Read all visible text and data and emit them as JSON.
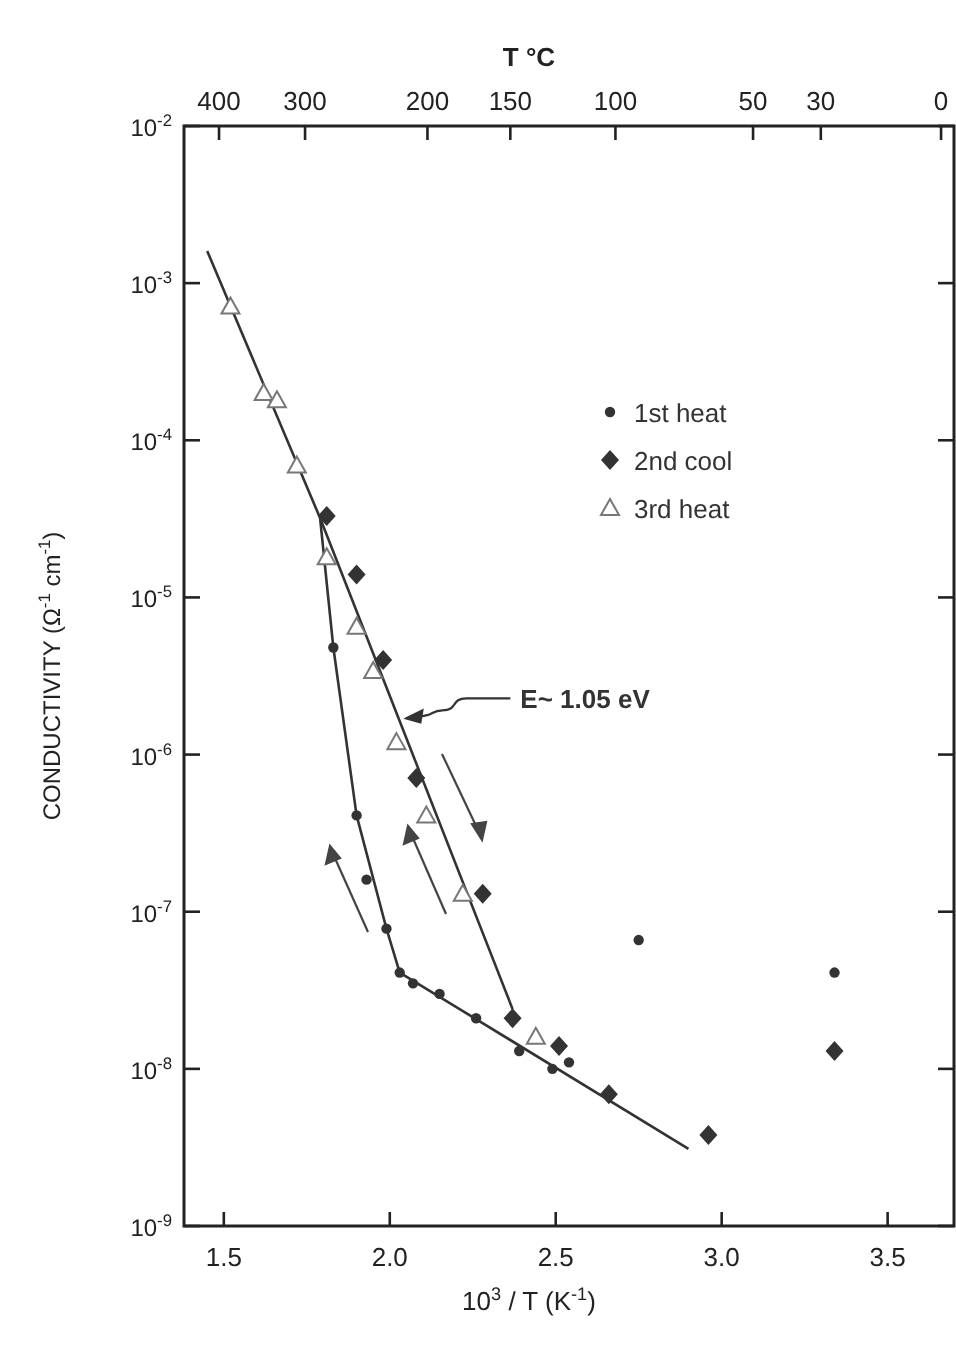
{
  "chart_data": {
    "type": "scatter",
    "xlabel": "10$^{3}$ / T   (K$^{-1}$)",
    "ylabel": "CONDUCTIVITY   (Ω$^{-1}$ cm$^{-1}$)",
    "x2label": "T °C",
    "log": "y",
    "xlim": [
      1.38,
      3.7
    ],
    "ylim": [
      1e-09,
      0.01
    ],
    "xticks": [
      {
        "value": 1.5,
        "label": "1.5"
      },
      {
        "value": 2.0,
        "label": "2.0"
      },
      {
        "value": 2.5,
        "label": "2.5"
      },
      {
        "value": 3.0,
        "label": "3.0"
      },
      {
        "value": 3.5,
        "label": "3.5"
      }
    ],
    "yticks": [
      {
        "value": 1e-09,
        "label": "10$^{-9}$"
      },
      {
        "value": 1e-08,
        "label": "10$^{-8}$"
      },
      {
        "value": 1e-07,
        "label": "10$^{-7}$"
      },
      {
        "value": 1e-06,
        "label": "10$^{-6}$"
      },
      {
        "value": 1e-05,
        "label": "10$^{-5}$"
      },
      {
        "value": 0.0001,
        "label": "10$^{-4}$"
      },
      {
        "value": 0.001,
        "label": "10$^{-3}$"
      },
      {
        "value": 0.01,
        "label": "10$^{-2}$"
      }
    ],
    "grid": false,
    "legend": "top right",
    "annotations": [
      {
        "text": "E~ 1.05 eV",
        "x": 2.05,
        "y": 1.7e-06
      },
      "400",
      "300",
      "200",
      "150",
      "100",
      "50",
      "30",
      "0"
    ],
    "series": [
      {
        "name": "1st heat",
        "color": "#333333",
        "marker": "circle",
        "x": [
          1.83,
          1.9,
          1.93,
          1.99,
          2.03,
          2.07,
          2.15,
          2.26,
          2.39,
          2.49,
          2.54,
          2.75,
          3.34
        ],
        "values": [
          4.8e-06,
          4.1e-07,
          1.6e-07,
          7.8e-08,
          4.1e-08,
          3.5e-08,
          3e-08,
          2.1e-08,
          1.3e-08,
          1e-08,
          1.1e-08,
          6.6e-08,
          4.1e-08
        ]
      },
      {
        "name": "2nd cool",
        "color": "#333333",
        "marker": "diamond",
        "x": [
          1.81,
          1.9,
          1.98,
          2.08,
          2.28,
          2.37,
          2.51,
          2.66,
          2.96,
          3.34
        ],
        "values": [
          3.3e-05,
          1.4e-05,
          4e-06,
          7.1e-07,
          1.3e-07,
          2.1e-08,
          1.4e-08,
          6.9e-09,
          3.8e-09,
          1.3e-08
        ]
      },
      {
        "name": "3rd heat",
        "color": "#777777",
        "marker": "triangle",
        "x": [
          1.52,
          1.62,
          1.66,
          1.72,
          1.81,
          1.9,
          1.95,
          2.02,
          2.11,
          2.22,
          2.44
        ],
        "values": [
          0.00071,
          0.0002,
          0.00018,
          6.9e-05,
          1.8e-05,
          6.5e-06,
          3.4e-06,
          1.2e-06,
          4.1e-07,
          1.3e-07,
          1.6e-08
        ]
      },
      {
        "type": "line",
        "color": "#333333",
        "x": [
          1.45,
          1.79,
          2.37
        ],
        "values": [
          0.0016,
          3.2e-05,
          2.4e-08
        ]
      },
      {
        "type": "line",
        "color": "#333333",
        "x": [
          1.79,
          1.83,
          1.9,
          1.99,
          2.03,
          2.9
        ],
        "values": [
          3.2e-05,
          4.8e-06,
          4.1e-07,
          7.8e-08,
          4.1e-08,
          3.1e-09
        ]
      }
    ]
  }
}
